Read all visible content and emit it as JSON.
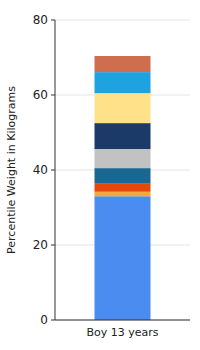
{
  "chart_data": {
    "type": "bar",
    "stacked": true,
    "grid": true,
    "y_label": "Percentile Weight in Kilograms",
    "categories": [
      "Boy 13 years"
    ],
    "series": [
      {
        "color": "#4a8cf0",
        "values": [
          33
        ]
      },
      {
        "color": "#f2a93b",
        "values": [
          1.2
        ]
      },
      {
        "color": "#e8470c",
        "values": [
          2.3
        ]
      },
      {
        "color": "#186891",
        "values": [
          4
        ]
      },
      {
        "color": "#c2c2c2",
        "values": [
          5.1
        ]
      },
      {
        "color": "#1b3a68",
        "values": [
          6.9
        ]
      },
      {
        "color": "#ffe189",
        "values": [
          8
        ]
      },
      {
        "color": "#1fa2e0",
        "values": [
          5.6
        ]
      },
      {
        "color": "#cf6e4e",
        "values": [
          4.3
        ]
      }
    ],
    "ylim": [
      0,
      80
    ],
    "yticks": [
      0,
      20,
      40,
      60,
      80
    ]
  }
}
